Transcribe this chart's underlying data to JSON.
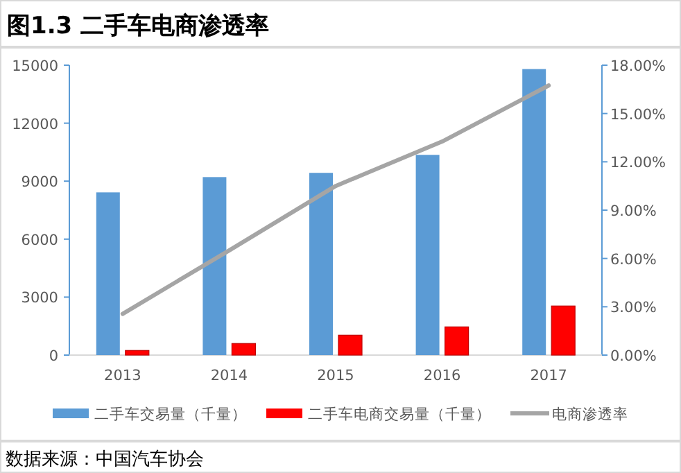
{
  "chart_data": {
    "type": "bar",
    "title": "图1.3  二手车电商渗透率",
    "categories": [
      "2013",
      "2014",
      "2015",
      "2016",
      "2017"
    ],
    "series": [
      {
        "name": "二手车交易量（千量）",
        "color": "#5b9bd5",
        "values": [
          8420,
          9210,
          9430,
          10360,
          14800
        ]
      },
      {
        "name": "二手车电商交易量（千量）",
        "color": "#ff0000",
        "values": [
          240,
          600,
          1030,
          1460,
          2540
        ]
      },
      {
        "name": "电商渗透率",
        "type": "line",
        "axis": "y2",
        "color": "#a5a5a5",
        "values": [
          2.56,
          6.5,
          10.5,
          13.26,
          16.74
        ]
      }
    ],
    "ylim": [
      0,
      15000
    ],
    "yticks": [
      0,
      3000,
      6000,
      9000,
      12000,
      15000
    ],
    "y2lim": [
      0,
      18
    ],
    "y2ticks": [
      {
        "value": 0,
        "label": "0.00%"
      },
      {
        "value": 3,
        "label": "3.00%"
      },
      {
        "value": 6,
        "label": "6.00%"
      },
      {
        "value": 9,
        "label": "9.00%"
      },
      {
        "value": 12,
        "label": "12.00%"
      },
      {
        "value": 15,
        "label": "15.00%"
      },
      {
        "value": 18,
        "label": "18.00%"
      }
    ],
    "legend": "bottom",
    "grid": false,
    "marker": "none",
    "annotations": [
      "数据来源：中国汽车协会"
    ]
  }
}
